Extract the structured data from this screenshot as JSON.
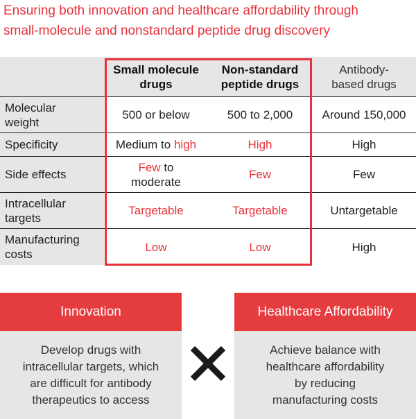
{
  "title": {
    "line1": "Ensuring both innovation and healthcare affordability through",
    "line2": "small-molecule and nonstandard peptide drug discovery"
  },
  "table": {
    "headers": {
      "small_line1": "Small molecule",
      "small_line2": "drugs",
      "peptide_line1": "Non-standard",
      "peptide_line2": "peptide drugs",
      "antibody_line1": "Antibody-",
      "antibody_line2": "based drugs"
    },
    "rows": {
      "mw": {
        "label_line1": "Molecular",
        "label_line2": "weight",
        "small": "500 or below",
        "peptide": "500 to 2,000",
        "antibody": "Around 150,000"
      },
      "spec": {
        "label": "Specificity",
        "small_a": "Medium to ",
        "small_b": "high",
        "peptide": "High",
        "antibody": "High"
      },
      "side": {
        "label": "Side effects",
        "small_a": "Few",
        "small_b": " to",
        "small_c": "moderate",
        "peptide": "Few",
        "antibody": "Few"
      },
      "intra": {
        "label_line1": "Intracellular",
        "label_line2": "targets",
        "small": "Targetable",
        "peptide": "Targetable",
        "antibody": "Untargetable"
      },
      "manu": {
        "label_line1": "Manufacturing",
        "label_line2": "costs",
        "small": "Low",
        "peptide": "Low",
        "antibody": "High"
      }
    }
  },
  "boxes": {
    "innovation": {
      "heading": "Innovation",
      "line1": "Develop drugs with",
      "line2": "intracellular targets, which",
      "line3": "are difficult for antibody",
      "line4": "therapeutics to access"
    },
    "affordability": {
      "heading": "Healthcare Affordability",
      "line1": "Achieve balance with",
      "line2": "healthcare affordability",
      "line3": "by reducing",
      "line4": "manufacturing costs"
    }
  },
  "colors": {
    "accent_red": "#e8313a",
    "box_red": "#e53c3f",
    "gray": "#e6e6e6"
  },
  "icons": {
    "cross": "multiply-icon"
  }
}
